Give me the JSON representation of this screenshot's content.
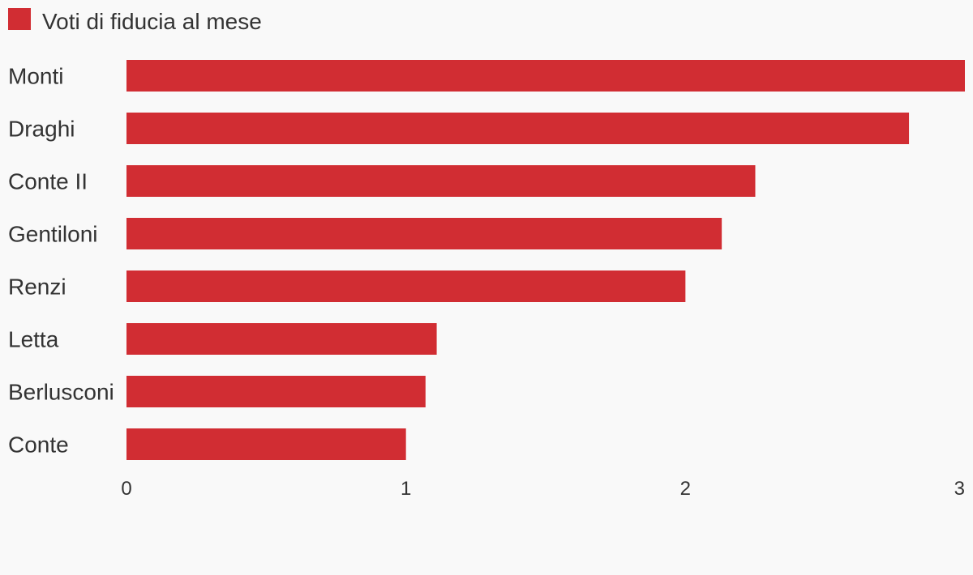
{
  "chart_data": {
    "type": "bar",
    "orientation": "horizontal",
    "categories": [
      "Monti",
      "Draghi",
      "Conte II",
      "Gentiloni",
      "Renzi",
      "Letta",
      "Berlusconi",
      "Conte"
    ],
    "series": [
      {
        "name": "Voti di fiducia al mese",
        "values": [
          3.0,
          2.8,
          2.25,
          2.13,
          2.0,
          1.11,
          1.07,
          1.0
        ],
        "color": "#d12d33"
      }
    ],
    "xlim": [
      0,
      3
    ],
    "ticks": [
      "0",
      "1",
      "2",
      "3"
    ],
    "legend_position": "top-left",
    "grid": false
  }
}
